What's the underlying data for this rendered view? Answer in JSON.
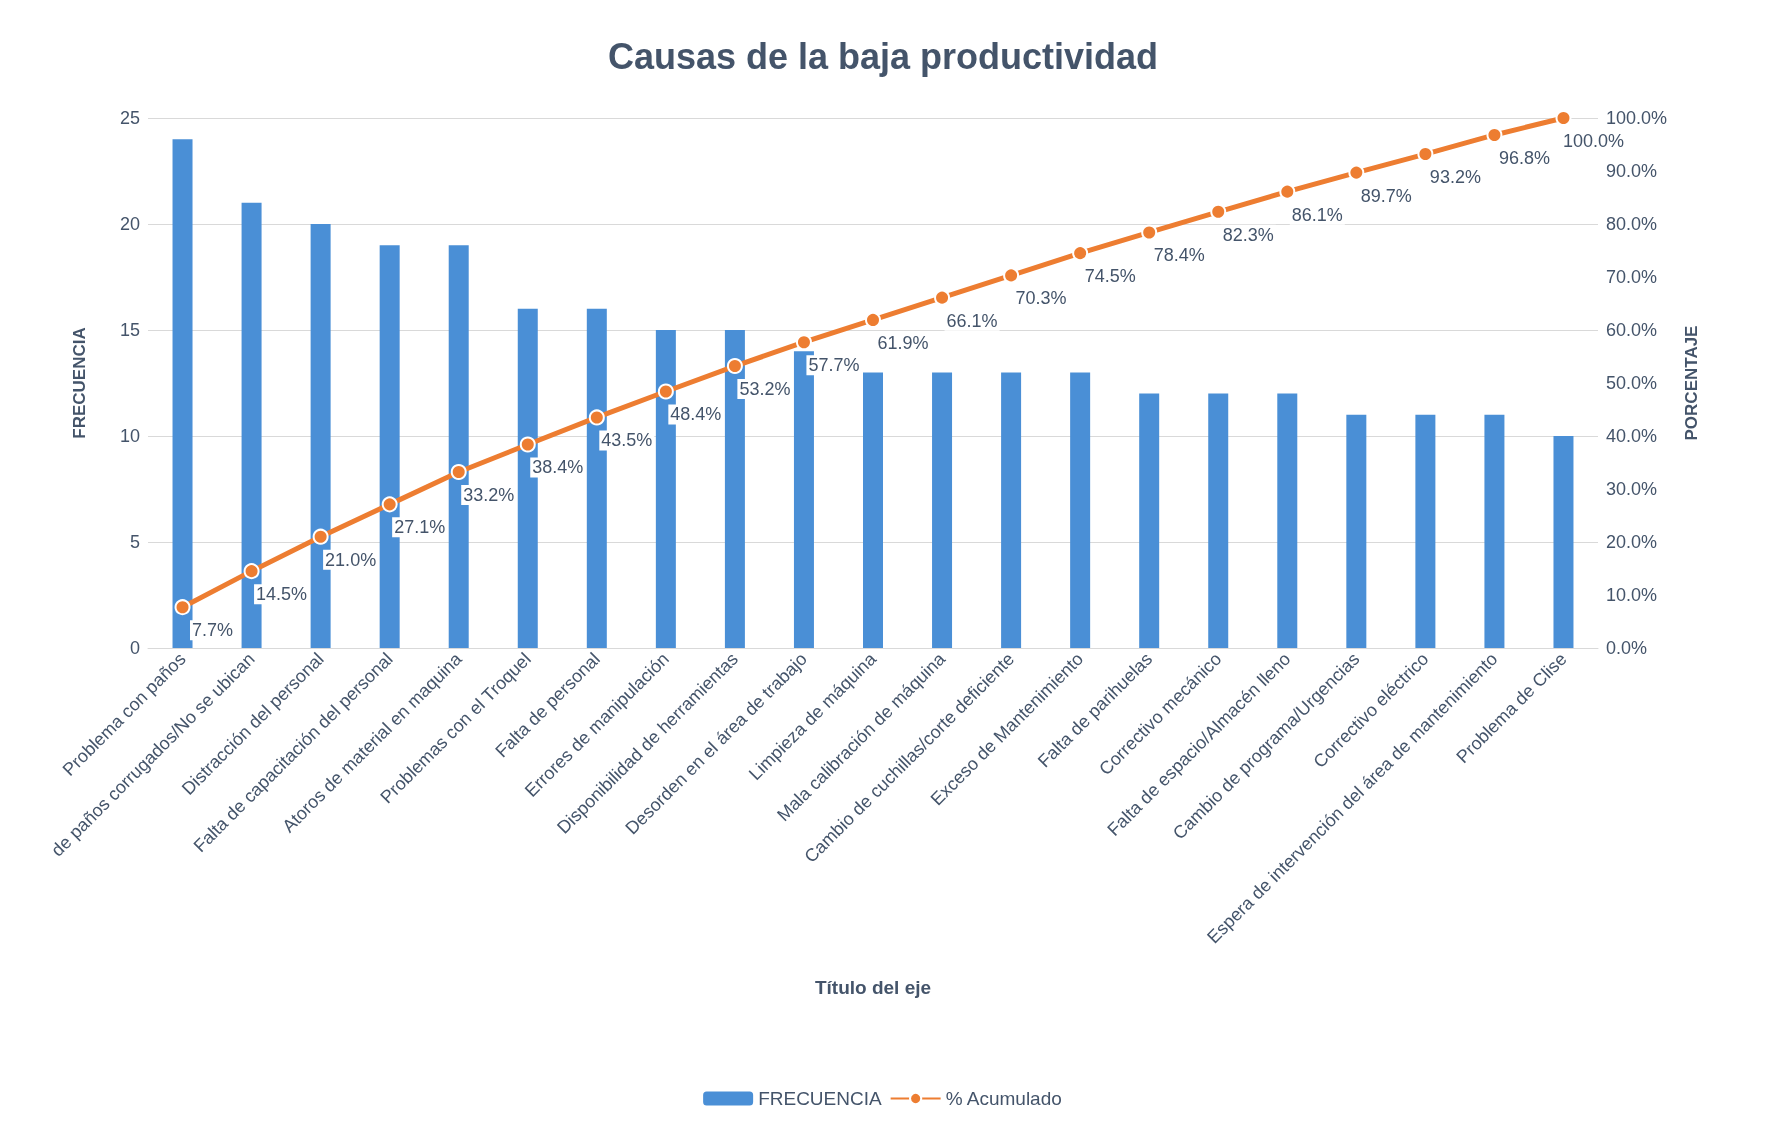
{
  "chart_data": {
    "type": "bar",
    "title": "Causas de la baja productividad",
    "xlabel": "Título del eje",
    "ylabel": "FRECUENCIA",
    "y2label": "PORCENTAJE",
    "categories": [
      "Problema con paños",
      "de paños corrugados/No se ubican",
      "Distracción del personal",
      "Falta de capacitación del personal",
      "Atoros de material en maquina",
      "Problemas con el Troquel",
      "Falta de personal",
      "Errores de manipulación",
      "Disponibilidad de herramientas",
      "Desorden en el área de trabajo",
      "Limpieza de máquina",
      "Mala calibración de máquina",
      "Cambio de cuchillas/corte deficiente",
      "Exceso de Mantenimiento",
      "Falta de parihuelas",
      "Correctivo mecánico",
      "Falta de espacio/Almacén lleno",
      "Cambio de programa/Urgencias",
      "Correctivo eléctrico",
      "Espera de intervención del área de mantenimiento",
      "Problema de Clise"
    ],
    "series": [
      {
        "name": "FRECUENCIA",
        "color": "#4a8fd6",
        "values": [
          24,
          21,
          20,
          19,
          19,
          16,
          16,
          15,
          15,
          14,
          13,
          13,
          13,
          13,
          12,
          12,
          12,
          11,
          11,
          11,
          10
        ]
      },
      {
        "name": "% Acumulado",
        "type": "line",
        "axis": "y2",
        "color": "#ed7d31",
        "marker": "circle",
        "values": [
          7.7,
          14.5,
          21.0,
          27.1,
          33.2,
          38.4,
          43.5,
          48.4,
          53.2,
          57.7,
          61.9,
          66.1,
          70.3,
          74.5,
          78.4,
          82.3,
          86.1,
          89.7,
          93.2,
          96.8,
          100.0
        ],
        "value_labels": [
          "7.7%",
          "14.5%",
          "21.0%",
          "27.1%",
          "33.2%",
          "38.4%",
          "43.5%",
          "48.4%",
          "53.2%",
          "57.7%",
          "61.9%",
          "66.1%",
          "70.3%",
          "74.5%",
          "78.4%",
          "82.3%",
          "86.1%",
          "89.7%",
          "93.2%",
          "96.8%",
          "100.0%"
        ]
      }
    ],
    "ylim": [
      0,
      25
    ],
    "yticks": [
      0,
      5,
      10,
      15,
      20,
      25
    ],
    "y2lim": [
      0,
      100
    ],
    "y2ticks": [
      {
        "value": 0,
        "label": "0.0%"
      },
      {
        "value": 10,
        "label": "10.0%"
      },
      {
        "value": 20,
        "label": "20.0%"
      },
      {
        "value": 30,
        "label": "30.0%"
      },
      {
        "value": 40,
        "label": "40.0%"
      },
      {
        "value": 50,
        "label": "50.0%"
      },
      {
        "value": 60,
        "label": "60.0%"
      },
      {
        "value": 70,
        "label": "70.0%"
      },
      {
        "value": 80,
        "label": "80.0%"
      },
      {
        "value": 90,
        "label": "90.0%"
      },
      {
        "value": 100,
        "label": "100.0%"
      }
    ],
    "grid": "y",
    "legend": "bottom"
  }
}
